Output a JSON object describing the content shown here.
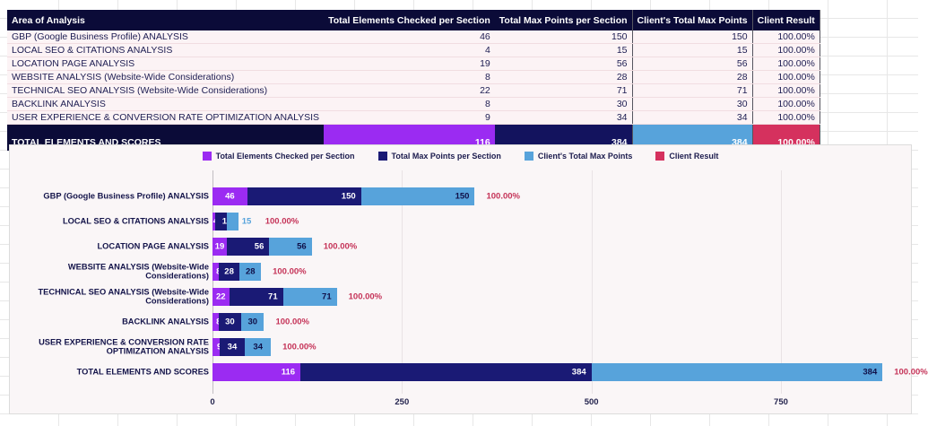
{
  "colors": {
    "purple": "#9b2bf2",
    "navy": "#1a1a75",
    "blue": "#57a3db",
    "red": "#d5315e",
    "red_label": "#c53358",
    "header_bg": "#0b0b38",
    "row_bg": "#fcf3f5",
    "chart_bg": "#faf6f7",
    "axis_line": "#c2bec2",
    "gridline": "#e9e3e5"
  },
  "table": {
    "header": [
      "Area of Analysis",
      "Total Elements Checked per Section",
      "Total Max Points per Section",
      "Client's Total Max Points",
      "Client Result"
    ],
    "rows": [
      {
        "area": "GBP (Google Business Profile) ANALYSIS",
        "elements": "46",
        "max_points": "150",
        "client_points": "150",
        "result": "100.00%"
      },
      {
        "area": "LOCAL SEO & CITATIONS ANALYSIS",
        "elements": "4",
        "max_points": "15",
        "client_points": "15",
        "result": "100.00%"
      },
      {
        "area": "LOCATION PAGE ANALYSIS",
        "elements": "19",
        "max_points": "56",
        "client_points": "56",
        "result": "100.00%"
      },
      {
        "area": "WEBSITE ANALYSIS (Website-Wide Considerations)",
        "elements": "8",
        "max_points": "28",
        "client_points": "28",
        "result": "100.00%"
      },
      {
        "area": "TECHNICAL SEO ANALYSIS (Website-Wide Considerations)",
        "elements": "22",
        "max_points": "71",
        "client_points": "71",
        "result": "100.00%"
      },
      {
        "area": "BACKLINK ANALYSIS",
        "elements": "8",
        "max_points": "30",
        "client_points": "30",
        "result": "100.00%"
      },
      {
        "area": "USER EXPERIENCE & CONVERSION RATE OPTIMIZATION ANALYSIS",
        "elements": "9",
        "max_points": "34",
        "client_points": "34",
        "result": "100.00%"
      }
    ],
    "total_row": {
      "area": "TOTAL ELEMENTS AND SCORES",
      "elements": "116",
      "max_points": "384",
      "client_points": "384",
      "result": "100.00%"
    }
  },
  "chart_data": {
    "type": "bar",
    "orientation": "horizontal",
    "stacked": true,
    "title": "",
    "xlabel": "",
    "ylabel": "",
    "categories": [
      "GBP (Google Business Profile) ANALYSIS",
      "LOCAL SEO & CITATIONS ANALYSIS",
      "LOCATION PAGE ANALYSIS",
      "WEBSITE ANALYSIS (Website-Wide Considerations)",
      "TECHNICAL SEO ANALYSIS (Website-Wide Considerations)",
      "BACKLINK ANALYSIS",
      "USER EXPERIENCE & CONVERSION RATE OPTIMIZATION ANALYSIS",
      "TOTAL ELEMENTS AND SCORES"
    ],
    "series": [
      {
        "name": "Total Elements Checked per Section",
        "color": "#9b2bf2",
        "values": [
          46,
          4,
          19,
          8,
          22,
          8,
          9,
          116
        ]
      },
      {
        "name": "Total Max Points per Section",
        "color": "#1a1a75",
        "values": [
          150,
          15,
          56,
          28,
          71,
          30,
          34,
          384
        ]
      },
      {
        "name": "Client's Total Max Points",
        "color": "#57a3db",
        "values": [
          150,
          15,
          56,
          28,
          71,
          30,
          34,
          384
        ]
      }
    ],
    "result_series": {
      "name": "Client Result",
      "color": "#d5315e",
      "labels": [
        "100.00%",
        "100.00%",
        "100.00%",
        "100.00%",
        "100.00%",
        "100.00%",
        "100.00%",
        "100.00%"
      ]
    },
    "x_ticks": [
      0,
      250,
      500,
      750
    ],
    "xlim": [
      0,
      920
    ],
    "grid": true,
    "legend_position": "top"
  }
}
